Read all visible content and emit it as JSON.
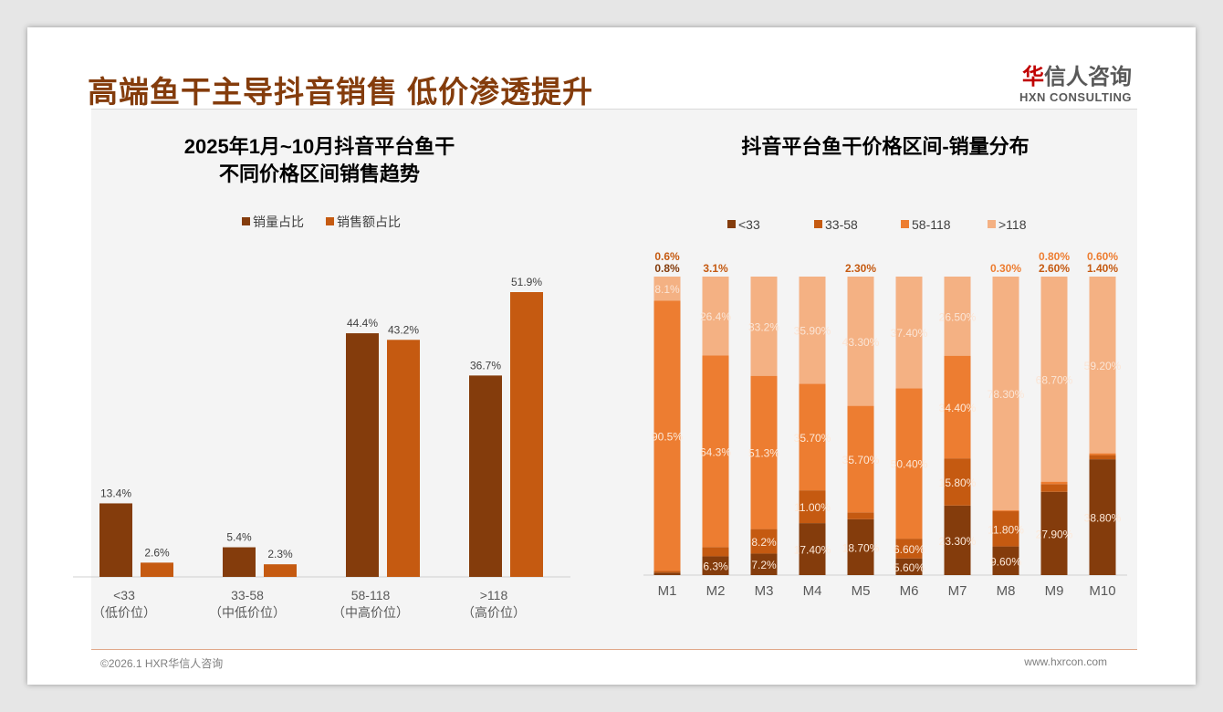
{
  "header": {
    "title": "高端鱼干主导抖音销售 低价渗透提升",
    "logo_cn_1": "华",
    "logo_cn_2": "信人咨询",
    "logo_en": "HXN CONSULTING"
  },
  "footer": {
    "copyright": "©2026.1 HXR华信人咨询",
    "url": "www.hxrcon.com"
  },
  "colors": {
    "dark": "#843C0C",
    "mid": "#C55A11",
    "orange": "#ED7D31",
    "light": "#F4B183"
  },
  "chart_data": [
    {
      "type": "bar",
      "title_line1": "2025年1月~10月抖音平台鱼干",
      "title_line2": "不同价格区间销售趋势",
      "categories": [
        "<33",
        "33-58",
        "58-118",
        ">118"
      ],
      "category_sub": [
        "（低价位）",
        "（中低价位）",
        "（中高价位）",
        "（高价位）"
      ],
      "series": [
        {
          "name": "销量占比",
          "values": [
            13.4,
            5.4,
            44.4,
            36.7
          ],
          "labels": [
            "13.4%",
            "5.4%",
            "44.4%",
            "36.7%"
          ]
        },
        {
          "name": "销售额占比",
          "values": [
            2.6,
            2.3,
            43.2,
            51.9
          ],
          "labels": [
            "2.6%",
            "2.3%",
            "43.2%",
            "51.9%"
          ]
        }
      ],
      "ylim": [
        0,
        55
      ],
      "legend": "top"
    },
    {
      "type": "bar",
      "stacked": true,
      "title": "抖音平台鱼干价格区间-销量分布",
      "categories": [
        "M1",
        "M2",
        "M3",
        "M4",
        "M5",
        "M6",
        "M7",
        "M8",
        "M9",
        "M10"
      ],
      "series": [
        {
          "name": "<33",
          "values": [
            0.8,
            6.3,
            7.2,
            17.4,
            18.7,
            5.6,
            23.3,
            9.6,
            27.9,
            38.8
          ],
          "labels": [
            "0.8%",
            "6.3%",
            "7.2%",
            "17.40%",
            "18.70%",
            "5.60%",
            "23.30%",
            "9.60%",
            "27.90%",
            "38.80%"
          ]
        },
        {
          "name": "33-58",
          "values": [
            0.6,
            3.1,
            8.2,
            11.0,
            2.3,
            6.6,
            15.8,
            11.8,
            2.6,
            1.4
          ],
          "labels": [
            "0.6%",
            "3.1%",
            "8.2%",
            "11.00%",
            "2.30%",
            "6.60%",
            "15.80%",
            "11.80%",
            "2.60%",
            "1.40%"
          ]
        },
        {
          "name": "58-118",
          "values": [
            90.5,
            64.3,
            51.3,
            35.7,
            35.7,
            50.4,
            34.4,
            0.3,
            0.8,
            0.6
          ],
          "labels": [
            "90.5%",
            "64.3%",
            "51.3%",
            "35.70%",
            "35.70%",
            "50.40%",
            "34.40%",
            "0.30%",
            "0.80%",
            "0.60%"
          ]
        },
        {
          "name": ">118",
          "values": [
            8.1,
            26.4,
            33.2,
            35.9,
            43.3,
            37.4,
            26.5,
            78.3,
            68.7,
            59.2
          ],
          "labels": [
            "8.1%",
            "26.4%",
            "33.2%",
            "35.90%",
            "43.30%",
            "37.40%",
            "26.50%",
            "78.30%",
            "68.70%",
            "59.20%"
          ]
        }
      ],
      "ylim": [
        0,
        100
      ],
      "legend": "top"
    }
  ]
}
